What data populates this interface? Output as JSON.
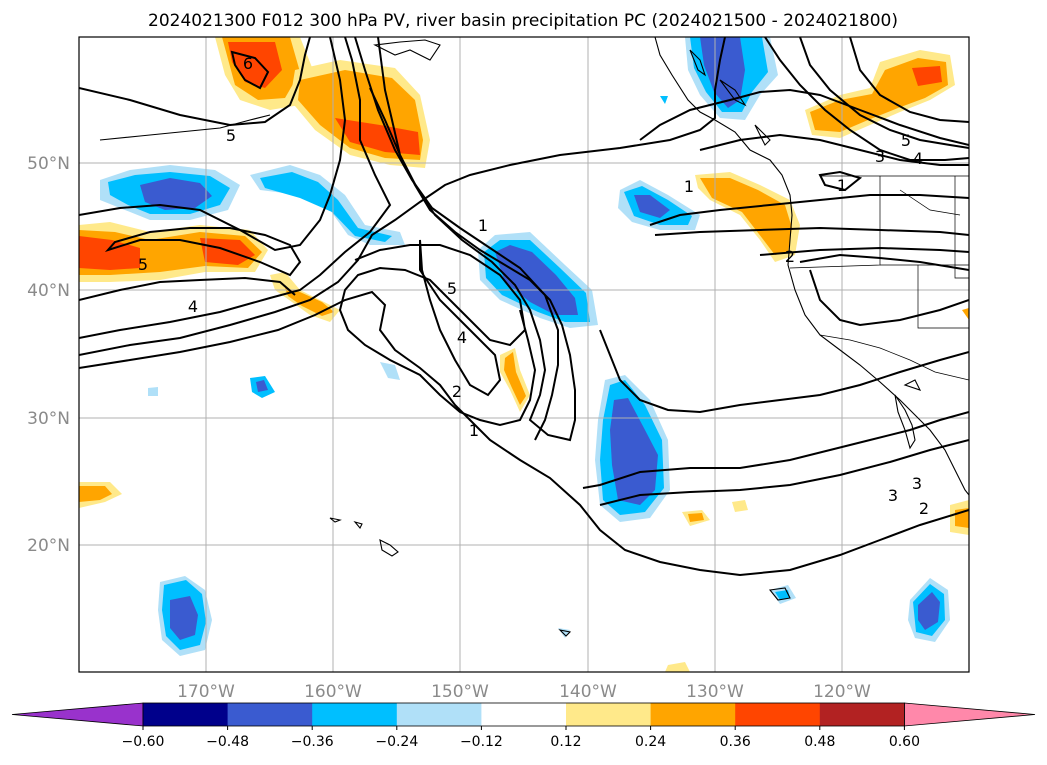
{
  "title": "2024021300 F012 300 hPa PV, river basin precipitation PC (2024021500 - 2024021800)",
  "map": {
    "lon_range": [
      -180,
      -110
    ],
    "lat_range": [
      10,
      60
    ],
    "lon_ticks": [
      "170°W",
      "160°W",
      "150°W",
      "140°W",
      "130°W",
      "120°W"
    ],
    "lat_ticks": [
      "50°N",
      "40°N",
      "30°N",
      "20°N"
    ],
    "grid": true
  },
  "colorbar": {
    "orientation": "horizontal",
    "extend": "both",
    "ticks": [
      "−0.60",
      "−0.48",
      "−0.36",
      "−0.24",
      "−0.12",
      "0.12",
      "0.24",
      "0.36",
      "0.48",
      "0.60"
    ],
    "colors": [
      "#9932cc",
      "#00008b",
      "#3a5bd0",
      "#00bfff",
      "#b0e0f8",
      "#ffffff",
      "#ffe98a",
      "#ffa500",
      "#ff4500",
      "#b22222",
      "#ff88aa"
    ]
  },
  "pv_contour_labels": [
    "6",
    "5",
    "5",
    "4",
    "5",
    "4",
    "1",
    "2",
    "1",
    "1",
    "5",
    "4",
    "3",
    "1",
    "2",
    "3",
    "3",
    "2"
  ]
}
